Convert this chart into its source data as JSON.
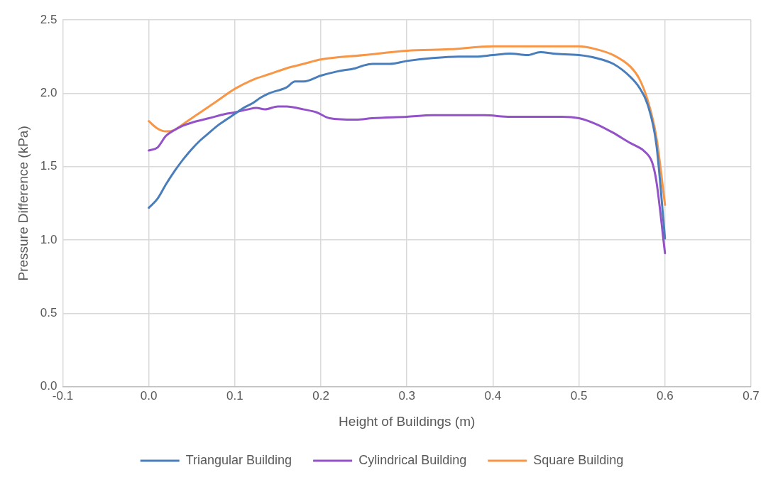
{
  "chart_data": {
    "type": "line",
    "xlabel": "Height of Buildings (m)",
    "ylabel": "Pressure Difference (kPa)",
    "xlim": [
      -0.1,
      0.7
    ],
    "xticks": [
      {
        "value": -0.1,
        "label": "-0.1"
      },
      {
        "value": 0,
        "label": "0.0"
      },
      {
        "value": 0.1,
        "label": "0.1"
      },
      {
        "value": 0.2,
        "label": "0.2"
      },
      {
        "value": 0.3,
        "label": "0.3"
      },
      {
        "value": 0.4,
        "label": "0.4"
      },
      {
        "value": 0.5,
        "label": "0.5"
      },
      {
        "value": 0.6,
        "label": "0.6"
      },
      {
        "value": 0.7,
        "label": "0.7"
      }
    ],
    "ylim": [
      0,
      2.5
    ],
    "yticks": [
      {
        "value": 0,
        "label": "0.0"
      },
      {
        "value": 0.5,
        "label": "0.5"
      },
      {
        "value": 1,
        "label": "1.0"
      },
      {
        "value": 1.5,
        "label": "1.5"
      },
      {
        "value": 2,
        "label": "2.0"
      },
      {
        "value": 2.5,
        "label": "2.5"
      }
    ],
    "grid": true,
    "legend": "bottom",
    "marker": "none",
    "line_style": "solid",
    "series": [
      {
        "name": "Triangular Building",
        "color": "#4a7ebb",
        "x": [
          0,
          0.01,
          0.02,
          0.03,
          0.04,
          0.05,
          0.06,
          0.07,
          0.08,
          0.09,
          0.1,
          0.11,
          0.12,
          0.13,
          0.14,
          0.16,
          0.17,
          0.18,
          0.2,
          0.22,
          0.24,
          0.25,
          0.26,
          0.28,
          0.3,
          0.33,
          0.36,
          0.38,
          0.4,
          0.42,
          0.44,
          0.455,
          0.47,
          0.5,
          0.52,
          0.54,
          0.56,
          0.57,
          0.58,
          0.59,
          0.6
        ],
        "values": [
          1.22,
          1.28,
          1.38,
          1.47,
          1.55,
          1.62,
          1.68,
          1.73,
          1.78,
          1.82,
          1.86,
          1.9,
          1.93,
          1.97,
          2.0,
          2.04,
          2.08,
          2.08,
          2.12,
          2.15,
          2.17,
          2.19,
          2.2,
          2.2,
          2.22,
          2.24,
          2.25,
          2.25,
          2.26,
          2.27,
          2.26,
          2.28,
          2.27,
          2.26,
          2.24,
          2.2,
          2.11,
          2.04,
          1.92,
          1.65,
          1.01
        ]
      },
      {
        "name": "Cylindrical Building",
        "color": "#9452c9",
        "x": [
          0,
          0.01,
          0.02,
          0.03,
          0.04,
          0.05,
          0.07,
          0.09,
          0.1,
          0.115,
          0.125,
          0.135,
          0.15,
          0.16,
          0.18,
          0.195,
          0.21,
          0.24,
          0.26,
          0.3,
          0.33,
          0.36,
          0.39,
          0.42,
          0.45,
          0.48,
          0.5,
          0.52,
          0.54,
          0.56,
          0.57,
          0.575,
          0.585,
          0.59,
          0.6
        ],
        "values": [
          1.61,
          1.63,
          1.71,
          1.75,
          1.78,
          1.8,
          1.83,
          1.86,
          1.87,
          1.89,
          1.9,
          1.89,
          1.91,
          1.91,
          1.89,
          1.87,
          1.83,
          1.82,
          1.83,
          1.84,
          1.85,
          1.85,
          1.85,
          1.84,
          1.84,
          1.84,
          1.83,
          1.79,
          1.73,
          1.66,
          1.63,
          1.61,
          1.53,
          1.4,
          0.91
        ]
      },
      {
        "name": "Square Building",
        "color": "#f79646",
        "x": [
          0,
          0.01,
          0.02,
          0.03,
          0.04,
          0.06,
          0.08,
          0.1,
          0.12,
          0.14,
          0.16,
          0.18,
          0.2,
          0.25,
          0.3,
          0.35,
          0.4,
          0.45,
          0.5,
          0.52,
          0.54,
          0.56,
          0.57,
          0.58,
          0.59,
          0.6
        ],
        "values": [
          1.81,
          1.76,
          1.74,
          1.75,
          1.79,
          1.87,
          1.95,
          2.03,
          2.09,
          2.13,
          2.17,
          2.2,
          2.23,
          2.26,
          2.29,
          2.3,
          2.32,
          2.32,
          2.32,
          2.3,
          2.26,
          2.18,
          2.1,
          1.95,
          1.7,
          1.24
        ]
      }
    ]
  }
}
